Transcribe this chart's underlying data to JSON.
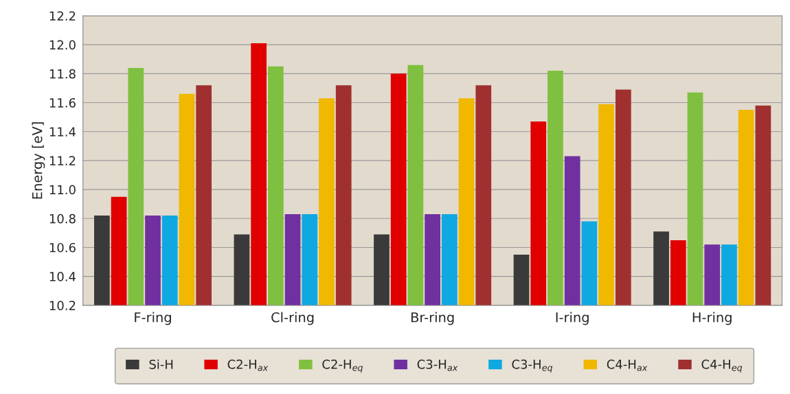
{
  "chart_data": {
    "type": "bar",
    "ylabel": "Energy [eV]",
    "categories": [
      "F-ring",
      "Cl-ring",
      "Br-ring",
      "I-ring",
      "H-ring"
    ],
    "series": [
      {
        "name": "Si-H",
        "color": "#3a3a3a",
        "values": [
          10.82,
          10.69,
          10.69,
          10.55,
          10.71
        ]
      },
      {
        "name": "C2-H$_{ax}$",
        "color": "#e00000",
        "values": [
          10.95,
          12.01,
          11.8,
          11.47,
          10.65
        ]
      },
      {
        "name": "C2-H$_{eq}$",
        "color": "#80c040",
        "values": [
          11.84,
          11.85,
          11.86,
          11.82,
          11.67
        ]
      },
      {
        "name": "C3-H$_{ax}$",
        "color": "#7030a0",
        "values": [
          10.82,
          10.83,
          10.83,
          11.23,
          10.62
        ]
      },
      {
        "name": "C3-H$_{eq}$",
        "color": "#10a8e0",
        "values": [
          10.82,
          10.83,
          10.83,
          10.78,
          10.62
        ]
      },
      {
        "name": "C4-H$_{ax}$",
        "color": "#f0b800",
        "values": [
          11.66,
          11.63,
          11.63,
          11.59,
          11.55
        ]
      },
      {
        "name": "C4-H$_{eq}$",
        "color": "#a03030",
        "values": [
          11.72,
          11.72,
          11.72,
          11.69,
          11.58
        ]
      }
    ],
    "ylim": [
      10.2,
      12.2
    ],
    "yticks": [
      10.2,
      10.4,
      10.6,
      10.8,
      {
        "value": 11,
        "label": "11.0"
      },
      11.2,
      11.4,
      11.6,
      11.8,
      {
        "value": 12,
        "label": "12.0"
      },
      12.2
    ],
    "grid": "y",
    "legend": "bottom"
  }
}
